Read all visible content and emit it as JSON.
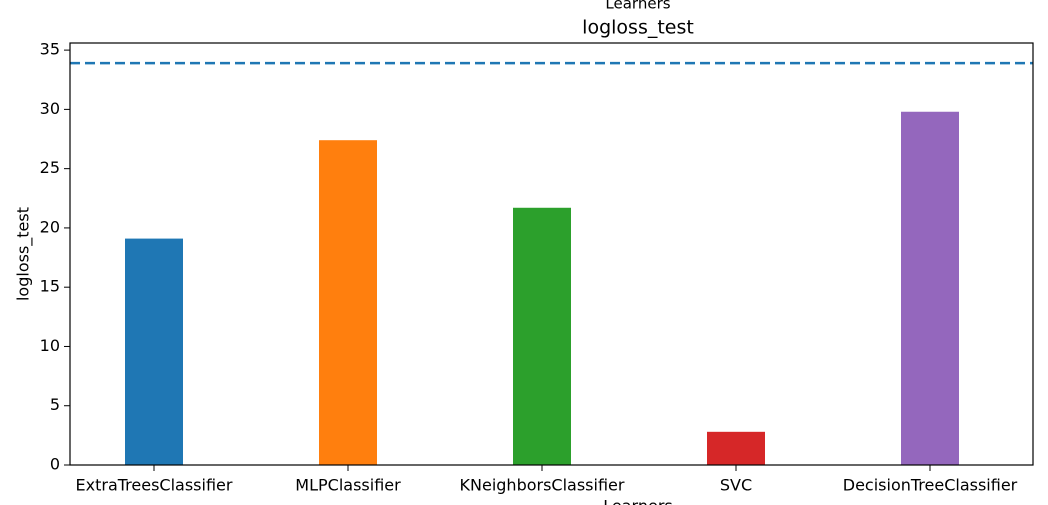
{
  "chart_data": {
    "type": "bar",
    "suptitle": "Learners",
    "title": "logloss_test",
    "x_label": "Learners",
    "y_label": "logloss_test",
    "categories": [
      "ExtraTreesClassifier",
      "MLPClassifier",
      "KNeighborsClassifier",
      "SVC",
      "DecisionTreeClassifier"
    ],
    "values": [
      19.1,
      27.4,
      21.7,
      2.8,
      29.8
    ],
    "colors": [
      "#1f77b4",
      "#ff7f0e",
      "#2ca02c",
      "#d62728",
      "#9467bd"
    ],
    "reference_line": {
      "value": 33.9,
      "color": "#1f77b4",
      "style": "dashed"
    },
    "ylim": [
      0,
      35.6
    ],
    "yticks": [
      0,
      5,
      10,
      15,
      20,
      25,
      30,
      35
    ],
    "grid": false
  }
}
